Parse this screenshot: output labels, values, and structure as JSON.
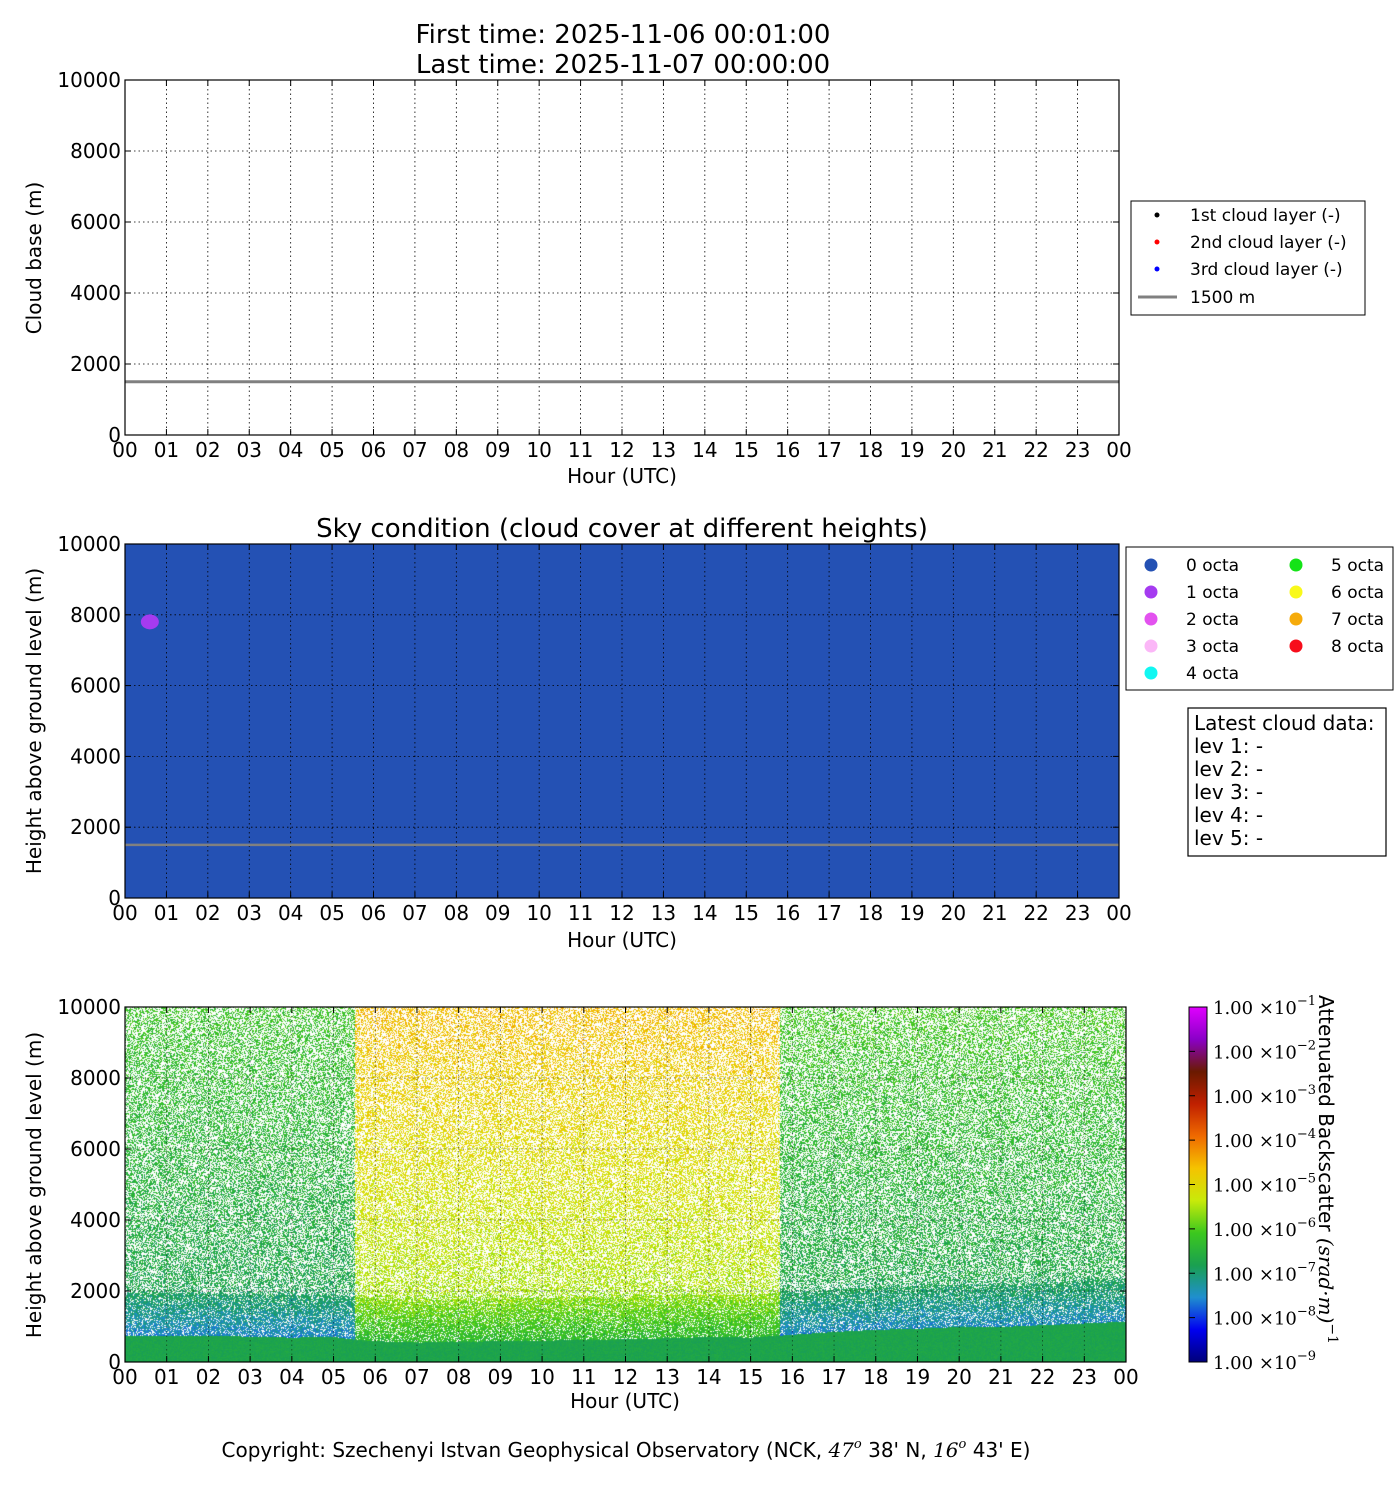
{
  "header": {
    "first_time": "First time: 2025-11-06 00:01:00",
    "last_time": "Last time: 2025-11-07 00:00:00"
  },
  "footer": {
    "copyright_prefix": "Copyright: Szechenyi Istvan Geophysical Observatory (NCK, ",
    "lat_deg": "47",
    "lat_rest": " 38' N, ",
    "lon_deg": "16",
    "lon_rest": " 43' E)",
    "degree_symbol": "o"
  },
  "chart_data": [
    {
      "type": "scatter",
      "title": "",
      "xlabel": "Hour (UTC)",
      "ylabel": "Cloud base (m)",
      "x_ticks": [
        "00",
        "01",
        "02",
        "03",
        "04",
        "05",
        "06",
        "07",
        "08",
        "09",
        "10",
        "11",
        "12",
        "13",
        "14",
        "15",
        "16",
        "17",
        "18",
        "19",
        "20",
        "21",
        "22",
        "23",
        "00"
      ],
      "y_ticks": [
        "0",
        "2000",
        "4000",
        "6000",
        "8000",
        "10000"
      ],
      "xlim": [
        0,
        24
      ],
      "ylim": [
        0,
        10000
      ],
      "grid": true,
      "legend_position": "right",
      "series": [
        {
          "name": "1st cloud layer (-)",
          "color": "#000000",
          "points": []
        },
        {
          "name": "2nd cloud layer (-)",
          "color": "#ff0000",
          "points": []
        },
        {
          "name": "3rd cloud layer (-)",
          "color": "#0000ff",
          "points": []
        }
      ],
      "reference_line": {
        "name": "1500 m",
        "y": 1500,
        "color": "#808080"
      }
    },
    {
      "type": "scatter",
      "title": "Sky condition (cloud cover at different heights)",
      "xlabel": "Hour (UTC)",
      "ylabel": "Height above ground level (m)",
      "x_ticks": [
        "00",
        "01",
        "02",
        "03",
        "04",
        "05",
        "06",
        "07",
        "08",
        "09",
        "10",
        "11",
        "12",
        "13",
        "14",
        "15",
        "16",
        "17",
        "18",
        "19",
        "20",
        "21",
        "22",
        "23",
        "00"
      ],
      "y_ticks": [
        "0",
        "2000",
        "4000",
        "6000",
        "8000",
        "10000"
      ],
      "xlim": [
        0,
        24
      ],
      "ylim": [
        0,
        10000
      ],
      "grid": true,
      "background_octa": 0,
      "legend_position": "right",
      "legend": [
        {
          "label": "0 octa",
          "color": "#2451b4"
        },
        {
          "label": "1 octa",
          "color": "#a53bf0"
        },
        {
          "label": "2 octa",
          "color": "#e352ef"
        },
        {
          "label": "3 octa",
          "color": "#fbb7f7"
        },
        {
          "label": "4 octa",
          "color": "#11f7f2"
        },
        {
          "label": "5 octa",
          "color": "#14e317"
        },
        {
          "label": "6 octa",
          "color": "#f9f91a"
        },
        {
          "label": "7 octa",
          "color": "#f6ab0a"
        },
        {
          "label": "8 octa",
          "color": "#f70d1b"
        }
      ],
      "points": [
        {
          "x": 0.6,
          "y": 7800,
          "octa": 1
        }
      ],
      "reference_line": {
        "y": 1500,
        "color": "#808080"
      },
      "latest_cloud_data": {
        "title": "Latest cloud data:",
        "levels": [
          "lev 1: -",
          "lev 2: -",
          "lev 3: -",
          "lev 4: -",
          "lev 5: -"
        ]
      }
    },
    {
      "type": "heatmap",
      "title": "",
      "xlabel": "Hour (UTC)",
      "ylabel": "Height above ground level (m)",
      "x_ticks": [
        "00",
        "01",
        "02",
        "03",
        "04",
        "05",
        "06",
        "07",
        "08",
        "09",
        "10",
        "11",
        "12",
        "13",
        "14",
        "15",
        "16",
        "17",
        "18",
        "19",
        "20",
        "21",
        "22",
        "23",
        "00"
      ],
      "y_ticks": [
        "0",
        "2000",
        "4000",
        "6000",
        "8000",
        "10000"
      ],
      "xlim": [
        0,
        24
      ],
      "ylim": [
        0,
        10000
      ],
      "grid": true,
      "colorbar": {
        "label_text": "Attenuated Backscatter ",
        "label_math": "(srad·m)",
        "label_exp": "−1",
        "scale": "log",
        "range": [
          1e-09,
          0.1
        ],
        "tick_mantissa": "1.00",
        "tick_times": "×10",
        "tick_exponents": [
          "−9",
          "−8",
          "−7",
          "−6",
          "−5",
          "−4",
          "−3",
          "−2",
          "−1"
        ],
        "colors": [
          "#00007a",
          "#0000f0",
          "#1f8fcf",
          "#1aa050",
          "#3cc81e",
          "#c8ea0a",
          "#f5c300",
          "#ef6a00",
          "#c02000",
          "#6a1a00",
          "#8a00c8",
          "#e000ff"
        ]
      },
      "boundary_layer_top_m": [
        {
          "x": 0,
          "y": 750
        },
        {
          "x": 1,
          "y": 760
        },
        {
          "x": 2,
          "y": 740
        },
        {
          "x": 3,
          "y": 730
        },
        {
          "x": 4,
          "y": 700
        },
        {
          "x": 5,
          "y": 720
        },
        {
          "x": 5.5,
          "y": 640
        },
        {
          "x": 6,
          "y": 600
        },
        {
          "x": 7,
          "y": 560
        },
        {
          "x": 8,
          "y": 580
        },
        {
          "x": 9,
          "y": 600
        },
        {
          "x": 10,
          "y": 610
        },
        {
          "x": 11,
          "y": 640
        },
        {
          "x": 12,
          "y": 650
        },
        {
          "x": 13,
          "y": 680
        },
        {
          "x": 14,
          "y": 720
        },
        {
          "x": 15,
          "y": 700
        },
        {
          "x": 16,
          "y": 780
        },
        {
          "x": 17,
          "y": 860
        },
        {
          "x": 18,
          "y": 920
        },
        {
          "x": 19,
          "y": 950
        },
        {
          "x": 20,
          "y": 1000
        },
        {
          "x": 21,
          "y": 1000
        },
        {
          "x": 22,
          "y": 1050
        },
        {
          "x": 23,
          "y": 1100
        },
        {
          "x": 24,
          "y": 1150
        }
      ],
      "noise_regions": [
        {
          "x_from": 0,
          "x_to": 5.5,
          "log_backscatter_low": -7.1,
          "log_backscatter_high": -6.2
        },
        {
          "x_from": 5.5,
          "x_to": 15.7,
          "log_backscatter_low": -6.1,
          "log_backscatter_high": -4.6
        },
        {
          "x_from": 15.7,
          "x_to": 24,
          "log_backscatter_low": -7.1,
          "log_backscatter_high": -6.1
        }
      ]
    }
  ]
}
